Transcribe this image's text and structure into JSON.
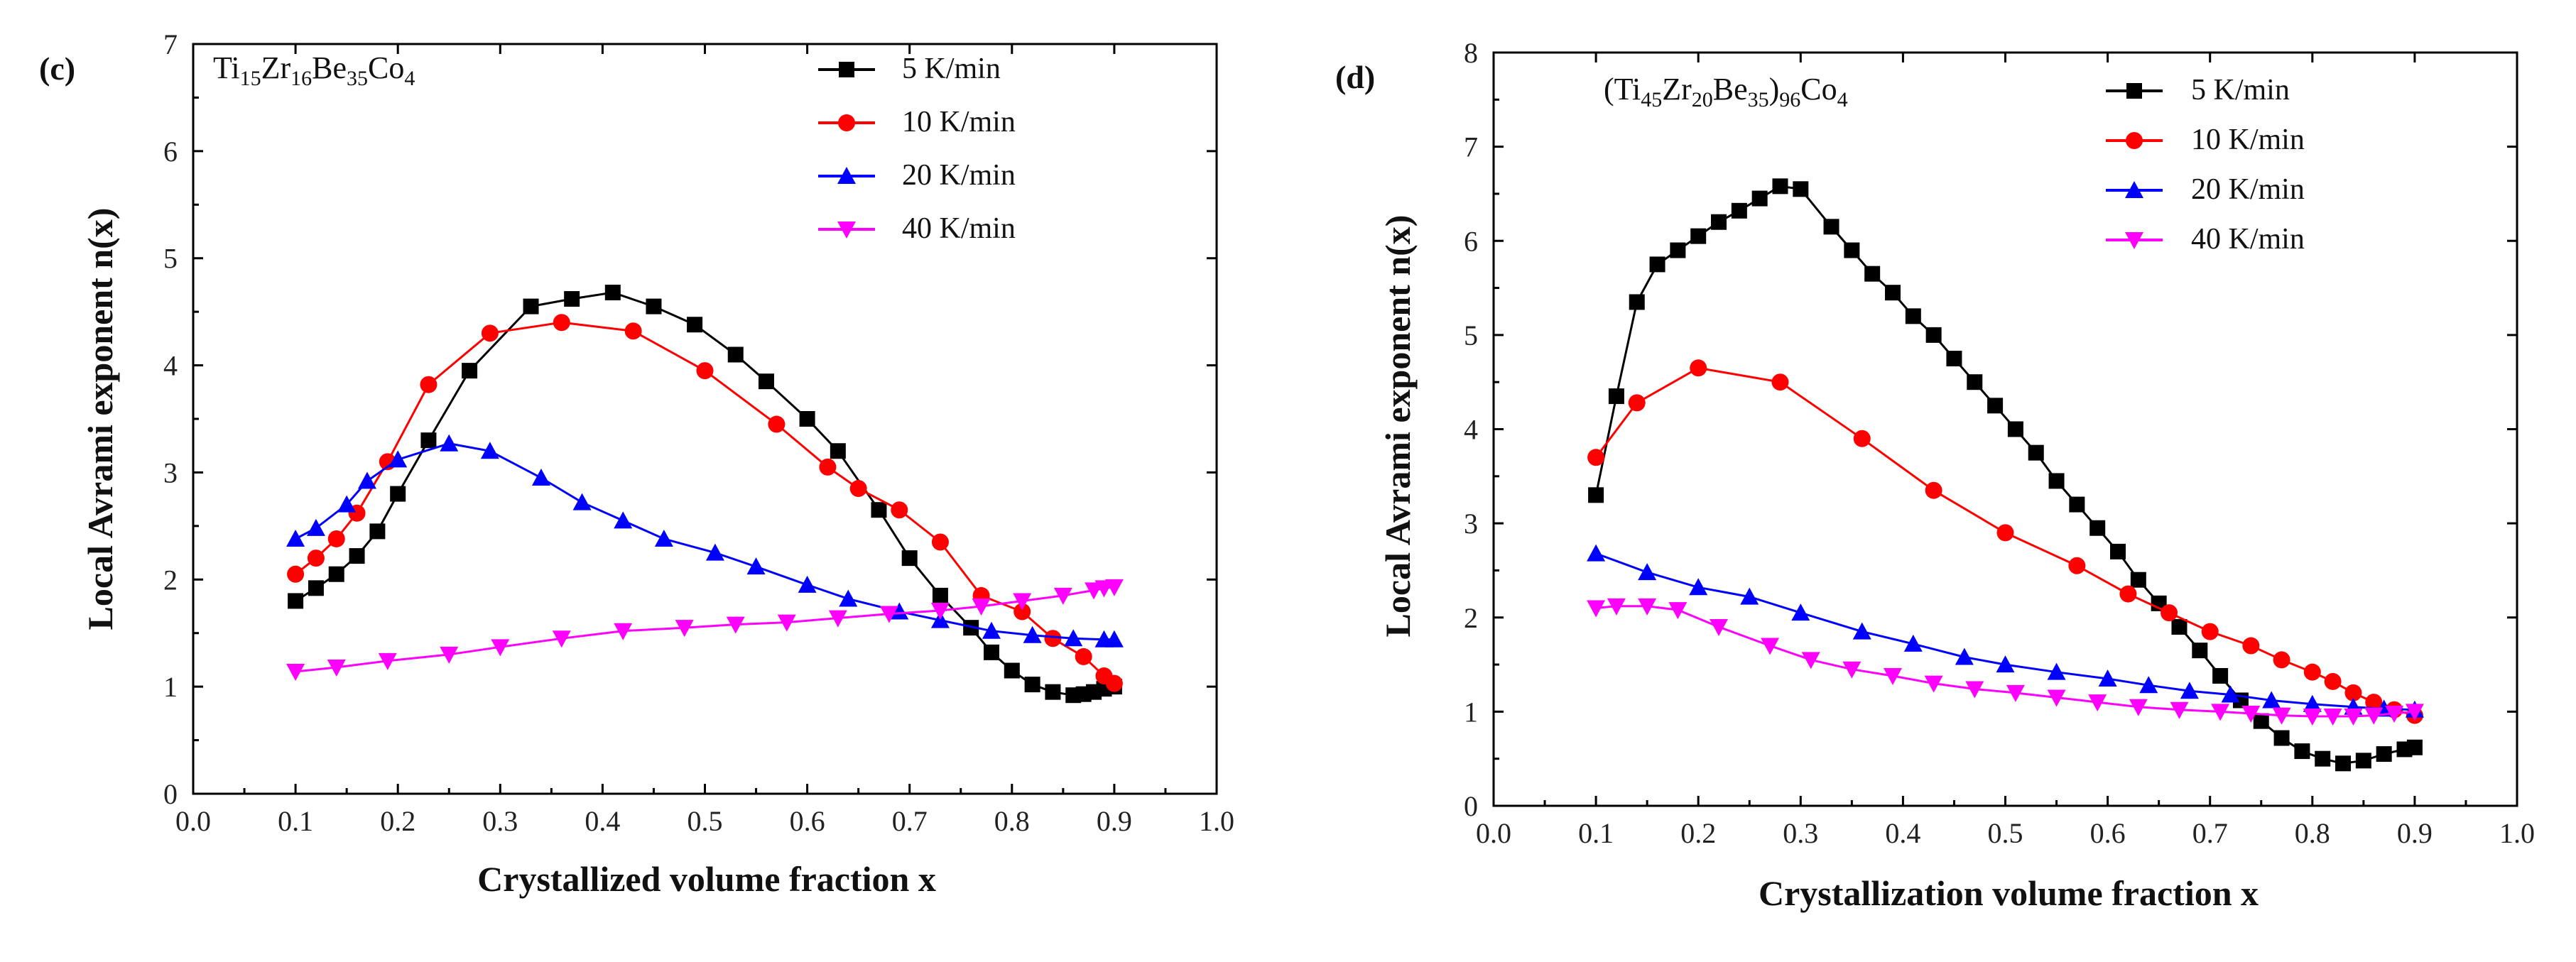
{
  "chart_data": [
    {
      "type": "line",
      "panel": "(c)",
      "composition": [
        {
          "t": "Ti",
          "s": "n"
        },
        {
          "t": "15",
          "s": "sub"
        },
        {
          "t": "Zr",
          "s": "n"
        },
        {
          "t": "16",
          "s": "sub"
        },
        {
          "t": "Be",
          "s": "n"
        },
        {
          "t": "35",
          "s": "sub"
        },
        {
          "t": "Co",
          "s": "n"
        },
        {
          "t": "4",
          "s": "sub"
        }
      ],
      "xlabel": "Crystallized volume fraction x",
      "ylabel": "Local Avrami exponent n(x)",
      "xlim": [
        0.0,
        1.0
      ],
      "ylim": [
        0,
        7
      ],
      "xticks": [
        "0.0",
        "0.1",
        "0.2",
        "0.3",
        "0.4",
        "0.5",
        "0.6",
        "0.7",
        "0.8",
        "0.9",
        "1.0"
      ],
      "yticks": [
        "0",
        "1",
        "2",
        "3",
        "4",
        "5",
        "6",
        "7"
      ],
      "legend_position": "top-right",
      "series": [
        {
          "name": "5 K/min",
          "color": "#000000",
          "marker": "square",
          "x": [
            0.1,
            0.12,
            0.14,
            0.16,
            0.18,
            0.2,
            0.23,
            0.27,
            0.33,
            0.37,
            0.41,
            0.45,
            0.49,
            0.53,
            0.56,
            0.6,
            0.63,
            0.67,
            0.7,
            0.73,
            0.76,
            0.78,
            0.8,
            0.82,
            0.84,
            0.86,
            0.87,
            0.88,
            0.89,
            0.9
          ],
          "y": [
            1.8,
            1.92,
            2.05,
            2.22,
            2.45,
            2.8,
            3.3,
            3.95,
            4.55,
            4.62,
            4.68,
            4.55,
            4.38,
            4.1,
            3.85,
            3.5,
            3.2,
            2.65,
            2.2,
            1.85,
            1.55,
            1.32,
            1.15,
            1.02,
            0.95,
            0.92,
            0.93,
            0.95,
            0.98,
            1.0
          ]
        },
        {
          "name": "10 K/min",
          "color": "#ff0000",
          "marker": "circle",
          "x": [
            0.1,
            0.12,
            0.14,
            0.16,
            0.19,
            0.23,
            0.29,
            0.36,
            0.43,
            0.5,
            0.57,
            0.62,
            0.65,
            0.69,
            0.73,
            0.77,
            0.81,
            0.84,
            0.87,
            0.89,
            0.9
          ],
          "y": [
            2.05,
            2.2,
            2.38,
            2.62,
            3.1,
            3.82,
            4.3,
            4.4,
            4.32,
            3.95,
            3.45,
            3.05,
            2.85,
            2.65,
            2.35,
            1.85,
            1.7,
            1.45,
            1.28,
            1.1,
            1.03
          ]
        },
        {
          "name": "20 K/min",
          "color": "#0000ff",
          "marker": "triangle-up",
          "x": [
            0.1,
            0.12,
            0.15,
            0.17,
            0.2,
            0.25,
            0.29,
            0.34,
            0.38,
            0.42,
            0.46,
            0.51,
            0.55,
            0.6,
            0.64,
            0.69,
            0.73,
            0.78,
            0.82,
            0.86,
            0.89,
            0.9
          ],
          "y": [
            2.38,
            2.48,
            2.7,
            2.92,
            3.12,
            3.27,
            3.2,
            2.95,
            2.72,
            2.55,
            2.38,
            2.25,
            2.12,
            1.95,
            1.82,
            1.7,
            1.62,
            1.52,
            1.48,
            1.45,
            1.44,
            1.44
          ]
        },
        {
          "name": "40 K/min",
          "color": "#ff00ff",
          "marker": "triangle-down",
          "x": [
            0.1,
            0.14,
            0.19,
            0.25,
            0.3,
            0.36,
            0.42,
            0.48,
            0.53,
            0.58,
            0.63,
            0.68,
            0.73,
            0.77,
            0.81,
            0.85,
            0.88,
            0.89,
            0.9
          ],
          "y": [
            1.14,
            1.18,
            1.24,
            1.3,
            1.37,
            1.45,
            1.52,
            1.55,
            1.58,
            1.6,
            1.64,
            1.68,
            1.71,
            1.75,
            1.8,
            1.85,
            1.9,
            1.92,
            1.93
          ]
        }
      ]
    },
    {
      "type": "line",
      "panel": "(d)",
      "composition": [
        {
          "t": "(Ti",
          "s": "n"
        },
        {
          "t": "45",
          "s": "sub"
        },
        {
          "t": "Zr",
          "s": "n"
        },
        {
          "t": "20",
          "s": "sub"
        },
        {
          "t": "Be",
          "s": "n"
        },
        {
          "t": "35",
          "s": "sub"
        },
        {
          "t": ")",
          "s": "n"
        },
        {
          "t": "96",
          "s": "sub"
        },
        {
          "t": "Co",
          "s": "n"
        },
        {
          "t": "4",
          "s": "sub"
        }
      ],
      "xlabel": "Crystallization volume fraction x",
      "ylabel": "Local Avrami exponent n(x)",
      "xlim": [
        0.0,
        1.0
      ],
      "ylim": [
        0,
        8
      ],
      "xticks": [
        "0.0",
        "0.1",
        "0.2",
        "0.3",
        "0.4",
        "0.5",
        "0.6",
        "0.7",
        "0.8",
        "0.9",
        "1.0"
      ],
      "yticks": [
        "0",
        "1",
        "2",
        "3",
        "4",
        "5",
        "6",
        "7",
        "8"
      ],
      "legend_position": "top-right",
      "series": [
        {
          "name": "5 K/min",
          "color": "#000000",
          "marker": "square",
          "x": [
            0.1,
            0.12,
            0.14,
            0.16,
            0.18,
            0.2,
            0.22,
            0.24,
            0.26,
            0.28,
            0.3,
            0.33,
            0.35,
            0.37,
            0.39,
            0.41,
            0.43,
            0.45,
            0.47,
            0.49,
            0.51,
            0.53,
            0.55,
            0.57,
            0.59,
            0.61,
            0.63,
            0.65,
            0.67,
            0.69,
            0.71,
            0.73,
            0.75,
            0.77,
            0.79,
            0.81,
            0.83,
            0.85,
            0.87,
            0.89,
            0.9
          ],
          "y": [
            3.3,
            4.35,
            5.35,
            5.75,
            5.9,
            6.05,
            6.2,
            6.32,
            6.45,
            6.58,
            6.55,
            6.15,
            5.9,
            5.65,
            5.45,
            5.2,
            5.0,
            4.75,
            4.5,
            4.25,
            4.0,
            3.75,
            3.45,
            3.2,
            2.95,
            2.7,
            2.4,
            2.15,
            1.9,
            1.65,
            1.38,
            1.12,
            0.9,
            0.72,
            0.58,
            0.5,
            0.45,
            0.48,
            0.55,
            0.6,
            0.62
          ]
        },
        {
          "name": "10 K/min",
          "color": "#ff0000",
          "marker": "circle",
          "x": [
            0.1,
            0.14,
            0.2,
            0.28,
            0.36,
            0.43,
            0.5,
            0.57,
            0.62,
            0.66,
            0.7,
            0.74,
            0.77,
            0.8,
            0.82,
            0.84,
            0.86,
            0.88,
            0.9
          ],
          "y": [
            3.7,
            4.28,
            4.65,
            4.5,
            3.9,
            3.35,
            2.9,
            2.55,
            2.25,
            2.05,
            1.85,
            1.7,
            1.55,
            1.42,
            1.32,
            1.2,
            1.1,
            1.02,
            0.96
          ]
        },
        {
          "name": "20 K/min",
          "color": "#0000ff",
          "marker": "triangle-up",
          "x": [
            0.1,
            0.15,
            0.2,
            0.25,
            0.3,
            0.36,
            0.41,
            0.46,
            0.5,
            0.55,
            0.6,
            0.64,
            0.68,
            0.72,
            0.76,
            0.8,
            0.84,
            0.87,
            0.9
          ],
          "y": [
            2.68,
            2.48,
            2.32,
            2.22,
            2.05,
            1.85,
            1.72,
            1.58,
            1.5,
            1.42,
            1.35,
            1.28,
            1.22,
            1.18,
            1.12,
            1.08,
            1.05,
            1.03,
            1.02
          ]
        },
        {
          "name": "40 K/min",
          "color": "#ff00ff",
          "marker": "triangle-down",
          "x": [
            0.1,
            0.12,
            0.15,
            0.18,
            0.22,
            0.27,
            0.31,
            0.35,
            0.39,
            0.43,
            0.47,
            0.51,
            0.55,
            0.59,
            0.63,
            0.67,
            0.71,
            0.74,
            0.77,
            0.8,
            0.82,
            0.84,
            0.86,
            0.88,
            0.9
          ],
          "y": [
            2.1,
            2.12,
            2.12,
            2.08,
            1.9,
            1.7,
            1.55,
            1.45,
            1.38,
            1.3,
            1.24,
            1.2,
            1.15,
            1.1,
            1.05,
            1.02,
            1.0,
            0.98,
            0.96,
            0.95,
            0.95,
            0.95,
            0.96,
            0.98,
            1.0
          ]
        }
      ]
    }
  ]
}
